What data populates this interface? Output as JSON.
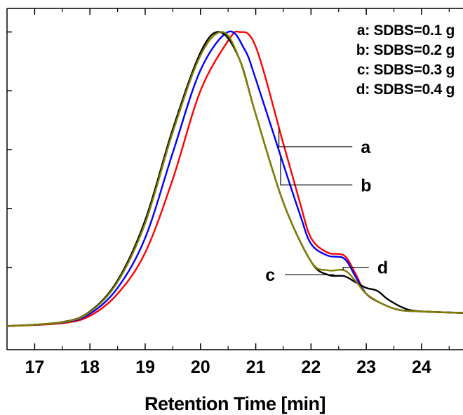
{
  "chart_data": {
    "type": "line",
    "xlabel": "Retention Time [min]",
    "ylabel": "",
    "xlim": [
      16.5,
      24.75
    ],
    "ylim": [
      -0.08,
      1.08
    ],
    "x_ticks": [
      "17",
      "18",
      "19",
      "20",
      "21",
      "22",
      "23",
      "24"
    ],
    "y_tick_labels_shown": false,
    "grid": false,
    "legend": {
      "placement": "top-right",
      "entries": [
        "a: SDBS=0.1 g",
        "b: SDBS=0.2 g",
        "c: SDBS=0.3 g",
        "d: SDBS=0.4 g"
      ]
    },
    "series": [
      {
        "name": "a",
        "color": "#ff0000",
        "x": [
          16.5,
          17.5,
          18.0,
          18.5,
          19.0,
          19.5,
          20.0,
          20.5,
          20.7,
          21.0,
          21.5,
          21.8,
          22.0,
          22.3,
          22.6,
          22.8,
          23.0,
          23.3,
          23.6,
          24.0,
          24.75
        ],
        "y": [
          0.0,
          0.01,
          0.035,
          0.11,
          0.25,
          0.5,
          0.8,
          0.97,
          1.0,
          0.95,
          0.62,
          0.42,
          0.3,
          0.25,
          0.24,
          0.18,
          0.11,
          0.075,
          0.055,
          0.05,
          0.045
        ]
      },
      {
        "name": "b",
        "color": "#0000ff",
        "x": [
          16.5,
          17.5,
          18.0,
          18.5,
          19.0,
          19.5,
          20.0,
          20.5,
          20.8,
          21.0,
          21.5,
          21.8,
          22.0,
          22.3,
          22.6,
          22.8,
          23.0,
          23.3,
          23.6,
          24.0,
          24.75
        ],
        "y": [
          0.0,
          0.012,
          0.042,
          0.13,
          0.3,
          0.59,
          0.87,
          1.0,
          0.94,
          0.84,
          0.55,
          0.38,
          0.28,
          0.24,
          0.23,
          0.17,
          0.11,
          0.075,
          0.055,
          0.05,
          0.045
        ]
      },
      {
        "name": "c",
        "color": "#000000",
        "x": [
          16.5,
          17.5,
          18.0,
          18.5,
          19.0,
          19.5,
          20.0,
          20.35,
          20.7,
          21.0,
          21.5,
          22.0,
          22.3,
          22.6,
          22.8,
          23.0,
          23.2,
          23.4,
          23.7,
          24.0,
          24.75
        ],
        "y": [
          0.0,
          0.014,
          0.05,
          0.155,
          0.36,
          0.67,
          0.93,
          1.0,
          0.91,
          0.72,
          0.42,
          0.22,
          0.175,
          0.17,
          0.15,
          0.13,
          0.12,
          0.09,
          0.06,
          0.05,
          0.045
        ]
      },
      {
        "name": "d",
        "color": "#808000",
        "x": [
          16.5,
          17.5,
          18.0,
          18.5,
          19.0,
          19.5,
          20.0,
          20.4,
          20.7,
          21.0,
          21.5,
          22.0,
          22.3,
          22.6,
          22.8,
          23.0,
          23.3,
          23.6,
          24.0,
          24.75
        ],
        "y": [
          0.0,
          0.013,
          0.048,
          0.15,
          0.35,
          0.66,
          0.92,
          1.0,
          0.91,
          0.72,
          0.42,
          0.22,
          0.19,
          0.19,
          0.155,
          0.11,
          0.075,
          0.055,
          0.05,
          0.045
        ]
      }
    ],
    "curve_labels": [
      {
        "text": "a",
        "series": "a",
        "at_x": 21.42,
        "label_x": 22.9,
        "label_y": 0.61,
        "label_side": "right"
      },
      {
        "text": "b",
        "series": "b",
        "at_x": 21.45,
        "label_x": 22.9,
        "label_y": 0.48,
        "label_side": "right"
      },
      {
        "text": "c",
        "series": "c",
        "at_x": 22.42,
        "label_x": 21.35,
        "label_y": 0.175,
        "label_side": "left"
      },
      {
        "text": "d",
        "series": "d",
        "at_x": 22.58,
        "label_x": 23.2,
        "label_y": 0.2,
        "label_side": "right"
      }
    ]
  }
}
